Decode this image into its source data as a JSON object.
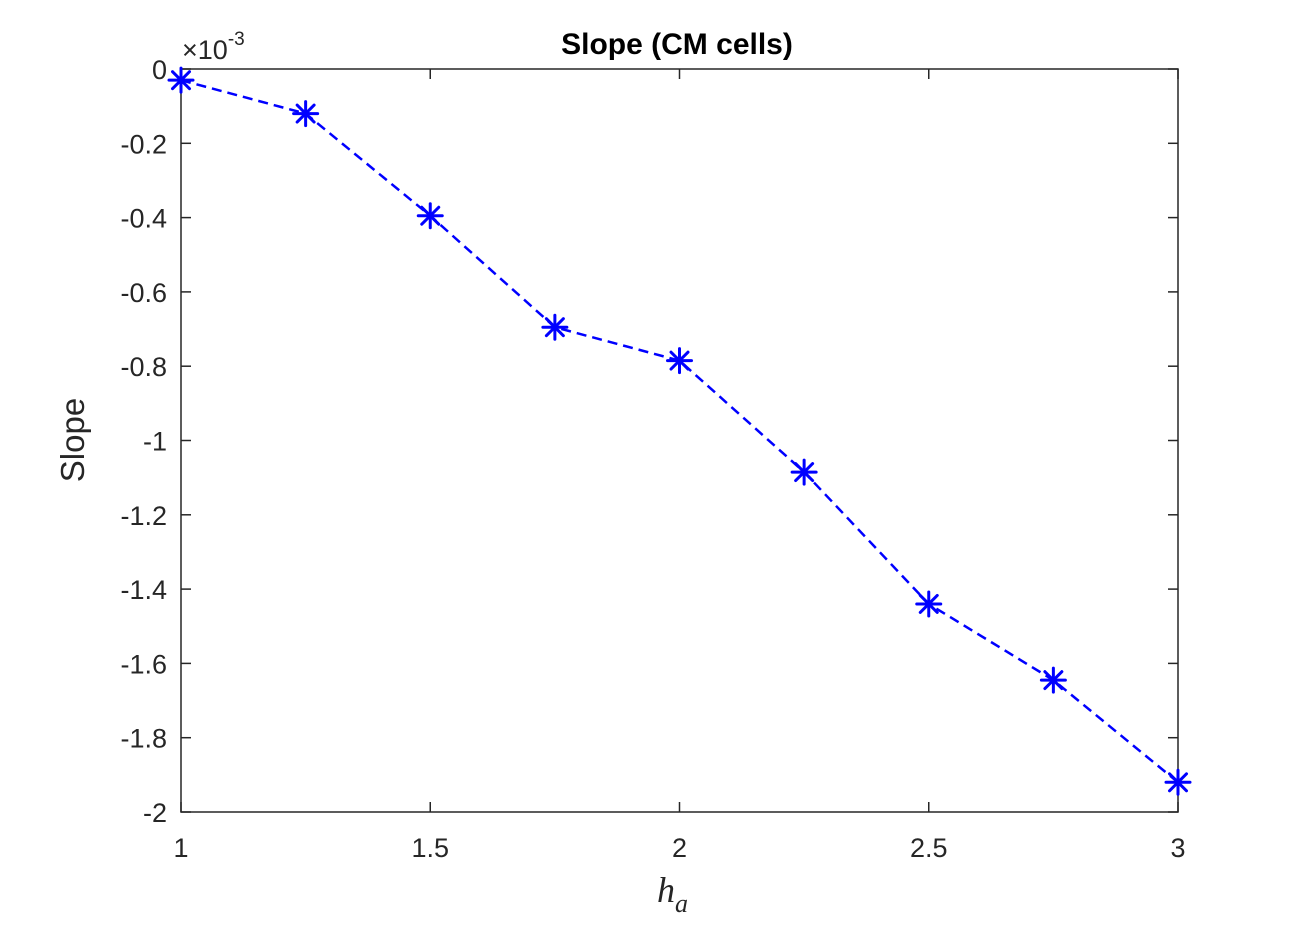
{
  "chart_data": {
    "type": "line",
    "title": "Slope (CM cells)",
    "xlabel": {
      "base": "h",
      "subscript": "a"
    },
    "ylabel": "Slope",
    "exponent": {
      "prefix": "×10",
      "power": "-3"
    },
    "xlim": [
      1,
      3
    ],
    "ylim": [
      -2,
      0
    ],
    "xticks": [
      1,
      1.5,
      2,
      2.5,
      3
    ],
    "xtick_labels": [
      "1",
      "1.5",
      "2",
      "2.5",
      "3"
    ],
    "yticks": [
      0,
      -0.2,
      -0.4,
      -0.6,
      -0.8,
      -1,
      -1.2,
      -1.4,
      -1.6,
      -1.8,
      -2
    ],
    "ytick_labels": [
      "0",
      "-0.2",
      "-0.4",
      "-0.6",
      "-0.8",
      "-1",
      "-1.2",
      "-1.4",
      "-1.6",
      "-1.8",
      "-2"
    ],
    "grid": false,
    "series": [
      {
        "color": "#0000ff",
        "line_style": "dashed",
        "marker": "asterisk",
        "x": [
          1,
          1.25,
          1.5,
          1.75,
          2,
          2.25,
          2.5,
          2.75,
          3
        ],
        "y": [
          -0.03,
          -0.12,
          -0.395,
          -0.695,
          -0.785,
          -1.085,
          -1.44,
          -1.645,
          -1.92
        ]
      }
    ]
  }
}
